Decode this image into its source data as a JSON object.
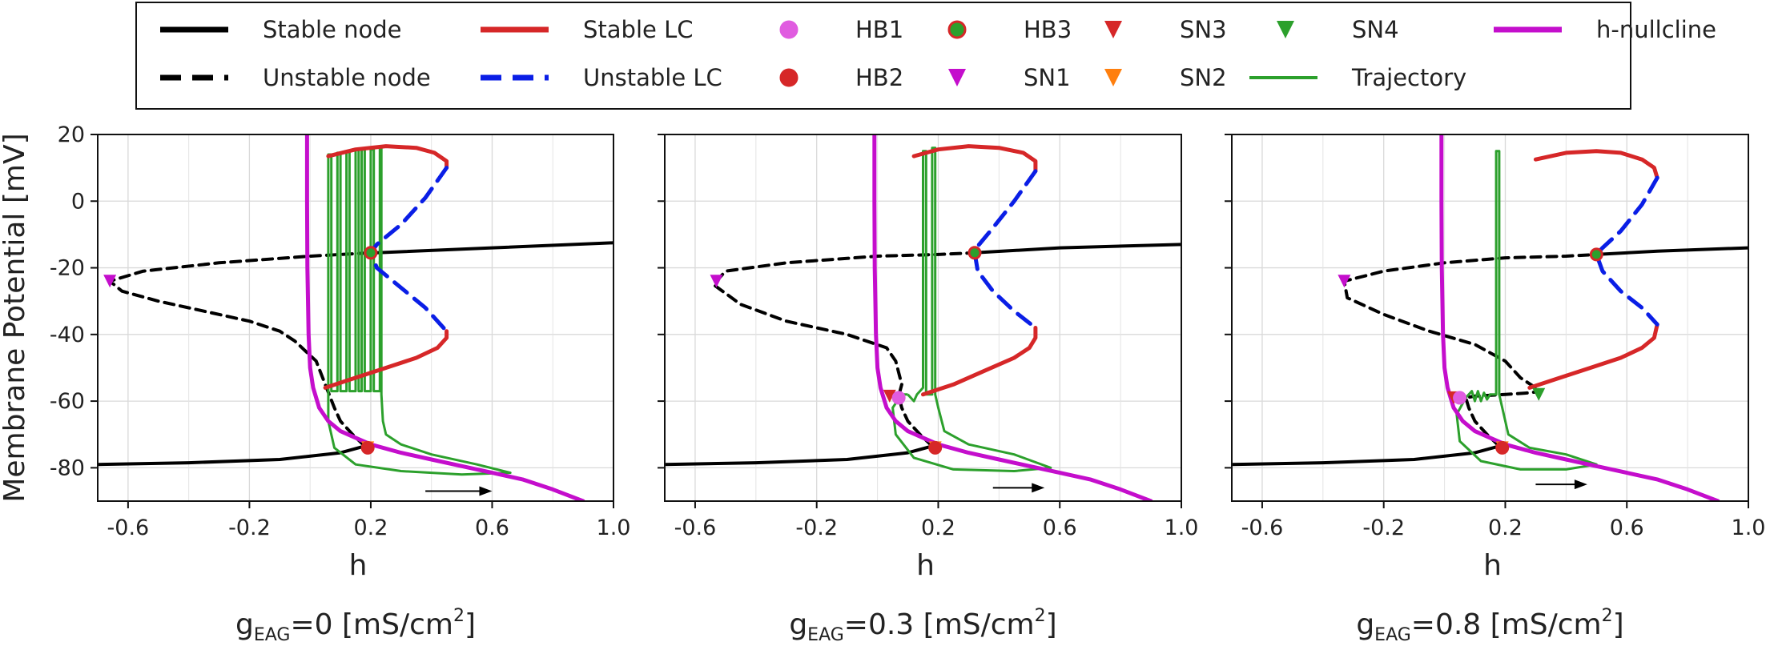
{
  "chart_data": {
    "type": "line",
    "ylabel": "Membrane Potential [mV]",
    "xlim": [
      -0.7,
      1.0
    ],
    "ylim": [
      -90,
      20
    ],
    "xticks": [
      -0.6,
      -0.2,
      0.2,
      0.6,
      1.0
    ],
    "xtick_labels": [
      "-0.6",
      "-0.2",
      "0.2",
      "0.6",
      "1.0"
    ],
    "yticks": [
      20,
      0,
      -20,
      -40,
      -60,
      -80
    ],
    "ytick_labels": [
      "20",
      "0",
      "-20",
      "-40",
      "-60",
      "-80"
    ],
    "grid": true,
    "legend_position": "top",
    "legend": [
      {
        "name": "Stable node",
        "kind": "line",
        "color": "#000000",
        "dash": "solid"
      },
      {
        "name": "Unstable node",
        "kind": "line",
        "color": "#000000",
        "dash": "dashed"
      },
      {
        "name": "Stable LC",
        "kind": "line",
        "color": "#d62728",
        "dash": "solid"
      },
      {
        "name": "Unstable LC",
        "kind": "line",
        "color": "#0a1ee6",
        "dash": "dashed"
      },
      {
        "name": "HB1",
        "kind": "circle",
        "color": "#e05ce0",
        "edge": "#e05ce0"
      },
      {
        "name": "HB2",
        "kind": "circle",
        "color": "#d62728",
        "edge": "#d62728"
      },
      {
        "name": "HB3",
        "kind": "circle",
        "color": "#2ca02c",
        "edge": "#d62728"
      },
      {
        "name": "SN1",
        "kind": "triangle",
        "color": "#c40ecc"
      },
      {
        "name": "SN3",
        "kind": "triangle",
        "color": "#d62728"
      },
      {
        "name": "SN2",
        "kind": "triangle",
        "color": "#ff7f0e"
      },
      {
        "name": "Trajectory",
        "kind": "line",
        "color": "#2ca02c",
        "dash": "solid"
      },
      {
        "name": "SN4",
        "kind": "triangle",
        "color": "#2ca02c"
      },
      {
        "name": "h-nullcline",
        "kind": "line",
        "color": "#c40ecc",
        "dash": "solid"
      }
    ],
    "panels": [
      {
        "xlabel": "h",
        "title_main": "g",
        "title_sub": "EAG",
        "title_value": "=0 [mS/cm",
        "title_sup": "2",
        "title_end": "]",
        "stable_node_lower": {
          "x": [
            -0.7,
            -0.4,
            -0.1,
            0.1,
            0.18
          ],
          "y": [
            -79,
            -78.5,
            -77.5,
            -75.5,
            -73.5
          ]
        },
        "stable_node_upper": {
          "x": [
            0.22,
            0.6,
            1.0
          ],
          "y": [
            -15.5,
            -14,
            -12.5
          ]
        },
        "unstable_node": {
          "x": [
            0.18,
            0.14,
            0.1,
            0.08,
            0.05,
            0.02,
            -0.05,
            -0.1,
            -0.2,
            -0.35,
            -0.5,
            -0.62,
            -0.66,
            -0.55,
            -0.3,
            0.0,
            0.2
          ],
          "y": [
            -73.5,
            -70,
            -66,
            -62,
            -55,
            -48,
            -42,
            -39,
            -36,
            -33,
            -30,
            -27,
            -24,
            -21,
            -18.5,
            -16.5,
            -15.5
          ]
        },
        "stable_lc_upper": {
          "x": [
            0.06,
            0.15,
            0.25,
            0.35,
            0.41,
            0.45,
            0.45
          ],
          "y": [
            13.5,
            15.5,
            16.5,
            16,
            14.5,
            12,
            10
          ]
        },
        "stable_lc_lower": {
          "x": [
            0.05,
            0.15,
            0.25,
            0.35,
            0.42,
            0.45,
            0.45
          ],
          "y": [
            -56,
            -53,
            -50,
            -47,
            -44,
            -41,
            -39
          ]
        },
        "unstable_lc": {
          "x": [
            0.45,
            0.38,
            0.3,
            0.22,
            0.2,
            0.22,
            0.3,
            0.38,
            0.45
          ],
          "y": [
            10,
            1,
            -7,
            -13,
            -15.5,
            -20,
            -26,
            -32,
            -39
          ]
        },
        "nullcline_x": [
          -0.01,
          -0.01,
          -0.009,
          -0.005,
          0.0,
          0.01,
          0.03,
          0.06,
          0.1,
          0.15,
          0.2,
          0.3,
          0.4,
          0.5,
          0.6,
          0.7,
          0.8,
          0.9
        ],
        "nullcline_y": [
          20,
          0,
          -20,
          -40,
          -50,
          -56,
          -62,
          -66,
          -69,
          -71,
          -73,
          -75.5,
          -77.5,
          -79.5,
          -81.5,
          -83.5,
          -86.5,
          -90
        ],
        "trajectory": [
          [
            0.06,
            -57
          ],
          [
            0.06,
            14
          ],
          [
            0.07,
            14
          ],
          [
            0.07,
            -57
          ],
          [
            0.09,
            -57
          ],
          [
            0.09,
            14.5
          ],
          [
            0.1,
            14.5
          ],
          [
            0.1,
            -57
          ],
          [
            0.12,
            -57
          ],
          [
            0.12,
            15
          ],
          [
            0.13,
            15
          ],
          [
            0.13,
            -57
          ],
          [
            0.15,
            -57
          ],
          [
            0.15,
            15.5
          ],
          [
            0.16,
            15.5
          ],
          [
            0.16,
            -57
          ],
          [
            0.17,
            -57
          ],
          [
            0.17,
            15.5
          ],
          [
            0.18,
            15.5
          ],
          [
            0.18,
            -57
          ],
          [
            0.2,
            -57
          ],
          [
            0.2,
            15.5
          ],
          [
            0.21,
            15.5
          ],
          [
            0.21,
            -57
          ],
          [
            0.23,
            -57
          ],
          [
            0.23,
            16
          ],
          [
            0.235,
            16
          ],
          [
            0.235,
            -58
          ],
          [
            0.24,
            -66
          ],
          [
            0.25,
            -70
          ],
          [
            0.3,
            -73
          ],
          [
            0.4,
            -76
          ],
          [
            0.55,
            -79
          ],
          [
            0.66,
            -81.5
          ],
          [
            0.5,
            -82
          ],
          [
            0.3,
            -81
          ],
          [
            0.15,
            -79
          ],
          [
            0.08,
            -74
          ],
          [
            0.06,
            -66
          ],
          [
            0.06,
            -57
          ]
        ],
        "hb": [
          {
            "type": "HB2",
            "x": 0.19,
            "y": -74
          },
          {
            "type": "HB3",
            "x": 0.2,
            "y": -15.5
          }
        ],
        "sn": [
          {
            "type": "SN1",
            "x": -0.66,
            "y": -24
          },
          {
            "type": "SN2",
            "x": 0.19,
            "y": -74
          }
        ],
        "arrow": {
          "x1": 0.38,
          "x2": 0.6,
          "y": -87
        }
      },
      {
        "xlabel": "h",
        "title_main": "g",
        "title_sub": "EAG",
        "title_value": "=0.3 [mS/cm",
        "title_sup": "2",
        "title_end": "]",
        "stable_node_lower": {
          "x": [
            -0.7,
            -0.4,
            -0.1,
            0.1,
            0.18
          ],
          "y": [
            -79,
            -78.5,
            -77.5,
            -75.5,
            -73.5
          ]
        },
        "stable_node_upper": {
          "x": [
            0.32,
            0.6,
            1.0
          ],
          "y": [
            -15.5,
            -14,
            -13
          ]
        },
        "unstable_node": {
          "x": [
            0.18,
            0.14,
            0.1,
            0.08,
            0.07,
            0.08,
            0.06,
            0.03,
            -0.1,
            -0.3,
            -0.45,
            -0.54,
            -0.5,
            -0.3,
            0.0,
            0.2,
            0.32
          ],
          "y": [
            -73.5,
            -70,
            -66,
            -62,
            -58.5,
            -55,
            -48,
            -44,
            -40,
            -36,
            -31,
            -25,
            -21,
            -18.5,
            -16.5,
            -16,
            -15.5
          ]
        },
        "stable_lc_upper": {
          "x": [
            0.12,
            0.2,
            0.3,
            0.4,
            0.48,
            0.52,
            0.52
          ],
          "y": [
            13.5,
            15.5,
            16.5,
            16,
            14.5,
            12,
            9
          ]
        },
        "stable_lc_lower": {
          "x": [
            0.15,
            0.25,
            0.35,
            0.45,
            0.5,
            0.52,
            0.52
          ],
          "y": [
            -58,
            -55,
            -51,
            -47,
            -44,
            -41,
            -38
          ]
        },
        "unstable_lc": {
          "x": [
            0.52,
            0.45,
            0.38,
            0.33,
            0.32,
            0.33,
            0.38,
            0.45,
            0.52
          ],
          "y": [
            9,
            0,
            -8,
            -13.5,
            -15.5,
            -21,
            -27,
            -33,
            -38
          ]
        },
        "nullcline_x": [
          -0.01,
          -0.01,
          -0.009,
          -0.005,
          0.0,
          0.01,
          0.03,
          0.06,
          0.1,
          0.15,
          0.2,
          0.3,
          0.4,
          0.5,
          0.6,
          0.7,
          0.8,
          0.9
        ],
        "nullcline_y": [
          20,
          0,
          -20,
          -40,
          -50,
          -56,
          -62,
          -66,
          -69,
          -71,
          -73,
          -75.5,
          -77.5,
          -79.5,
          -81.5,
          -83.5,
          -86.5,
          -90
        ],
        "trajectory": [
          [
            0.1,
            -58
          ],
          [
            0.12,
            -60
          ],
          [
            0.13,
            -58
          ],
          [
            0.15,
            -56
          ],
          [
            0.15,
            15
          ],
          [
            0.16,
            15
          ],
          [
            0.16,
            -58
          ],
          [
            0.18,
            -58
          ],
          [
            0.18,
            16
          ],
          [
            0.19,
            16
          ],
          [
            0.19,
            -58
          ],
          [
            0.2,
            -62
          ],
          [
            0.22,
            -69
          ],
          [
            0.3,
            -73
          ],
          [
            0.45,
            -76
          ],
          [
            0.57,
            -80
          ],
          [
            0.45,
            -81
          ],
          [
            0.25,
            -80.5
          ],
          [
            0.12,
            -77
          ],
          [
            0.06,
            -70
          ],
          [
            0.05,
            -62
          ],
          [
            0.08,
            -58
          ],
          [
            0.1,
            -58
          ]
        ],
        "hb": [
          {
            "type": "HB1",
            "x": 0.07,
            "y": -59
          },
          {
            "type": "HB2",
            "x": 0.19,
            "y": -74
          },
          {
            "type": "HB3",
            "x": 0.32,
            "y": -15.5
          }
        ],
        "sn": [
          {
            "type": "SN1",
            "x": -0.53,
            "y": -24
          },
          {
            "type": "SN2",
            "x": 0.19,
            "y": -74
          },
          {
            "type": "SN3",
            "x": 0.04,
            "y": -58.5
          }
        ],
        "arrow": {
          "x1": 0.38,
          "x2": 0.55,
          "y": -86
        }
      },
      {
        "xlabel": "h",
        "title_main": "g",
        "title_sub": "EAG",
        "title_value": "=0.8 [mS/cm",
        "title_sup": "2",
        "title_end": "]",
        "stable_node_lower": {
          "x": [
            -0.7,
            -0.4,
            -0.1,
            0.1,
            0.18
          ],
          "y": [
            -79,
            -78.5,
            -77.5,
            -75.5,
            -73.5
          ]
        },
        "stable_node_upper": {
          "x": [
            0.5,
            0.7,
            1.0
          ],
          "y": [
            -16,
            -15,
            -14
          ]
        },
        "unstable_node": {
          "x": [
            0.18,
            0.14,
            0.1,
            0.08,
            0.07,
            0.1,
            0.2,
            0.28,
            0.32,
            0.3,
            0.25,
            0.2,
            0.1,
            -0.05,
            -0.2,
            -0.32,
            -0.33,
            -0.2,
            0.0,
            0.2,
            0.4,
            0.5
          ],
          "y": [
            -73.5,
            -70,
            -66,
            -62,
            -59,
            -58.5,
            -58,
            -57.5,
            -57,
            -56,
            -53,
            -48,
            -43,
            -39,
            -34,
            -29,
            -24,
            -21,
            -18.5,
            -17,
            -16.5,
            -16
          ]
        },
        "stable_lc_upper": {
          "x": [
            0.3,
            0.4,
            0.5,
            0.58,
            0.65,
            0.69,
            0.7
          ],
          "y": [
            12.5,
            14.5,
            15,
            14.5,
            12.5,
            10,
            7
          ]
        },
        "stable_lc_lower": {
          "x": [
            0.28,
            0.38,
            0.48,
            0.58,
            0.65,
            0.69,
            0.7
          ],
          "y": [
            -56,
            -53,
            -50,
            -47,
            -44,
            -41,
            -37
          ]
        },
        "unstable_lc": {
          "x": [
            0.7,
            0.65,
            0.58,
            0.52,
            0.5,
            0.52,
            0.58,
            0.65,
            0.7
          ],
          "y": [
            7,
            -1,
            -9,
            -14,
            -16,
            -21,
            -27,
            -32,
            -37
          ]
        },
        "nullcline_x": [
          -0.01,
          -0.01,
          -0.009,
          -0.005,
          0.0,
          0.01,
          0.03,
          0.06,
          0.1,
          0.15,
          0.2,
          0.3,
          0.4,
          0.5,
          0.6,
          0.7,
          0.8,
          0.9
        ],
        "nullcline_y": [
          20,
          0,
          -20,
          -40,
          -50,
          -56,
          -62,
          -66,
          -69,
          -71,
          -73,
          -75.5,
          -77.5,
          -79.5,
          -81.5,
          -83.5,
          -86.5,
          -90
        ],
        "trajectory": [
          [
            0.07,
            -59
          ],
          [
            0.09,
            -57
          ],
          [
            0.1,
            -60
          ],
          [
            0.11,
            -57
          ],
          [
            0.12,
            -60
          ],
          [
            0.13,
            -57.5
          ],
          [
            0.14,
            -59.5
          ],
          [
            0.15,
            -58
          ],
          [
            0.16,
            -58
          ],
          [
            0.17,
            -58
          ],
          [
            0.17,
            15
          ],
          [
            0.18,
            15
          ],
          [
            0.18,
            -58
          ],
          [
            0.19,
            -62
          ],
          [
            0.21,
            -70
          ],
          [
            0.28,
            -74
          ],
          [
            0.4,
            -76
          ],
          [
            0.5,
            -79
          ],
          [
            0.4,
            -80.5
          ],
          [
            0.25,
            -80.5
          ],
          [
            0.12,
            -78
          ],
          [
            0.05,
            -72
          ],
          [
            0.04,
            -64
          ],
          [
            0.07,
            -59
          ]
        ],
        "hb": [
          {
            "type": "HB1",
            "x": 0.05,
            "y": -59
          },
          {
            "type": "HB2",
            "x": 0.19,
            "y": -74
          },
          {
            "type": "HB3",
            "x": 0.5,
            "y": -16
          }
        ],
        "sn": [
          {
            "type": "SN1",
            "x": -0.33,
            "y": -24
          },
          {
            "type": "SN2",
            "x": 0.19,
            "y": -74
          },
          {
            "type": "SN3",
            "x": 0.03,
            "y": -59
          },
          {
            "type": "SN4",
            "x": 0.31,
            "y": -58
          }
        ],
        "arrow": {
          "x1": 0.3,
          "x2": 0.47,
          "y": -85
        }
      }
    ]
  }
}
